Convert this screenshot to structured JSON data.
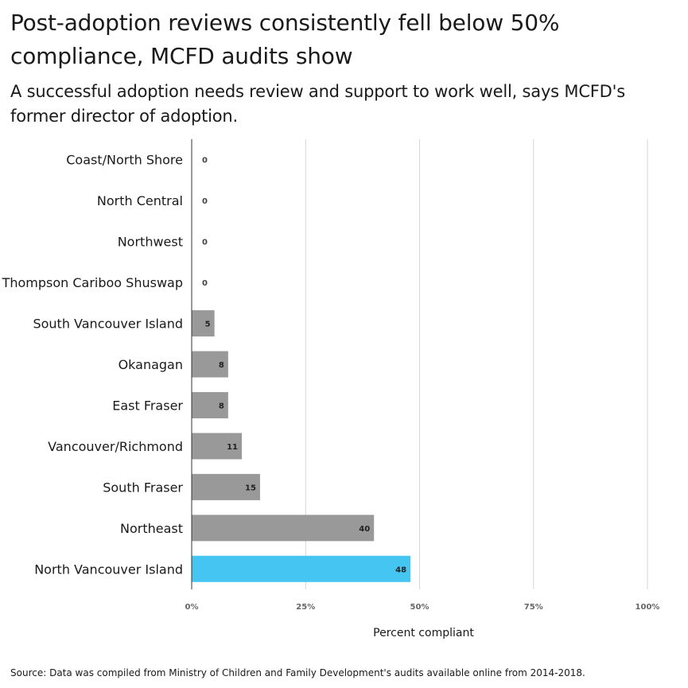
{
  "header": {
    "title": "Post-adoption reviews consistently fell below 50% compliance, MCFD audits show",
    "subtitle": "A successful adoption needs review and support to work well, says MCFD's former director of adoption."
  },
  "source": "Source: Data was compiled from Ministry of Children and Family Development's audits available online from 2014-2018.",
  "chart_data": {
    "type": "bar",
    "orientation": "horizontal",
    "title": "Post-adoption reviews consistently fell below 50% compliance, MCFD audits show",
    "subtitle": "A successful adoption needs review and support to work well, says MCFD's former director of adoption.",
    "xlabel": "Percent compliant",
    "ylabel": "",
    "categories": [
      "Coast/North Shore",
      "North Central",
      "Northwest",
      "Thompson Cariboo Shuswap",
      "South Vancouver Island",
      "Okanagan",
      "East Fraser",
      "Vancouver/Richmond",
      "South Fraser",
      "Northeast",
      "North Vancouver Island"
    ],
    "values": [
      0,
      0,
      0,
      0,
      5,
      8,
      8,
      11,
      15,
      40,
      48
    ],
    "xlim": [
      0,
      100
    ],
    "ticks": [
      0,
      25,
      50,
      75,
      100
    ],
    "tick_labels": [
      "0%",
      "25%",
      "50%",
      "75%",
      "100%"
    ],
    "grid": true,
    "legend": "none",
    "colors": {
      "default": "#999999",
      "highlight": "#45c6f2",
      "highlight_category": "North Vancouver Island",
      "gridline": "#d5d5d5",
      "baseline": "#333333"
    }
  }
}
